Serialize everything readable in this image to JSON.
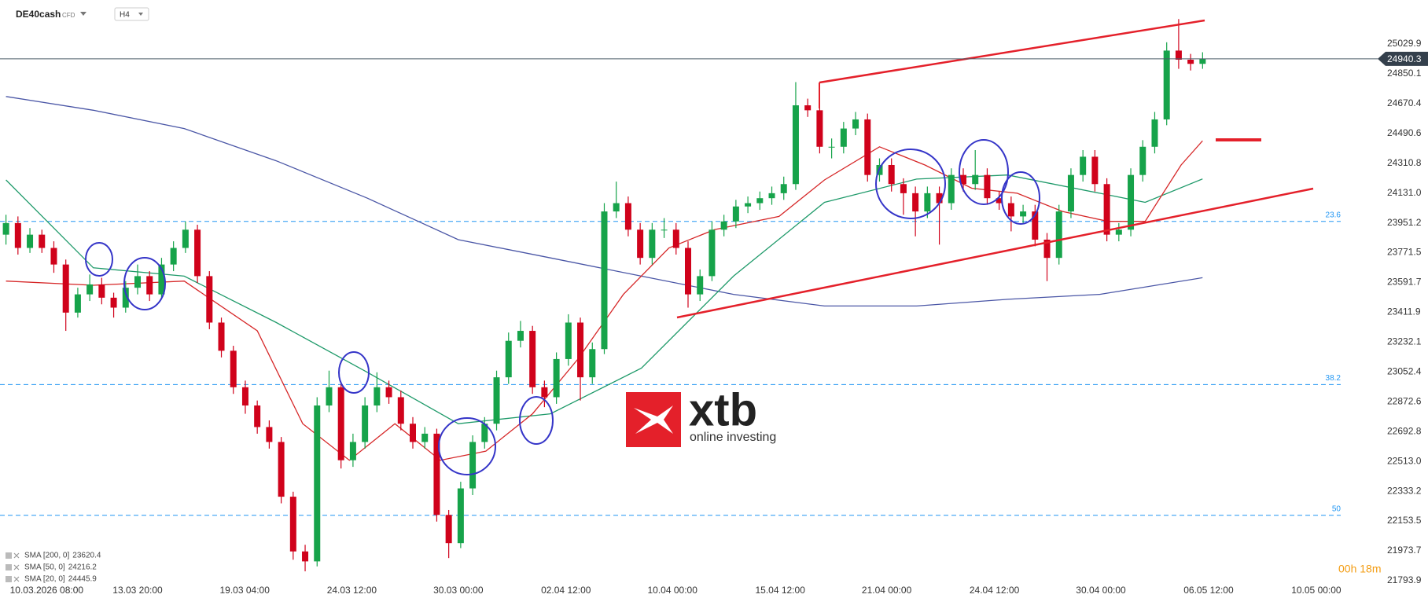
{
  "chart_data": {
    "type": "candlestick",
    "symbol": "DE40cash",
    "instrument_type": "CFD",
    "timeframe": "H4",
    "up_color": "#16a34a",
    "down_color": "#d0021b",
    "ohlc": [
      [
        23880,
        24000,
        23820,
        23950
      ],
      [
        23950,
        23990,
        23760,
        23800
      ],
      [
        23800,
        23920,
        23770,
        23880
      ],
      [
        23880,
        23910,
        23770,
        23800
      ],
      [
        23800,
        23840,
        23650,
        23700
      ],
      [
        23700,
        23730,
        23300,
        23410
      ],
      [
        23410,
        23560,
        23380,
        23520
      ],
      [
        23520,
        23640,
        23480,
        23580
      ],
      [
        23580,
        23620,
        23460,
        23500
      ],
      [
        23500,
        23530,
        23380,
        23440
      ],
      [
        23440,
        23600,
        23410,
        23560
      ],
      [
        23560,
        23700,
        23520,
        23630
      ],
      [
        23630,
        23660,
        23480,
        23520
      ],
      [
        23520,
        23740,
        23490,
        23700
      ],
      [
        23700,
        23840,
        23660,
        23800
      ],
      [
        23800,
        23960,
        23770,
        23910
      ],
      [
        23910,
        23940,
        23590,
        23630
      ],
      [
        23630,
        23660,
        23310,
        23350
      ],
      [
        23350,
        23380,
        23140,
        23180
      ],
      [
        23180,
        23210,
        22920,
        22960
      ],
      [
        22960,
        23000,
        22800,
        22850
      ],
      [
        22850,
        22880,
        22680,
        22720
      ],
      [
        22720,
        22760,
        22590,
        22630
      ],
      [
        22630,
        22660,
        22260,
        22300
      ],
      [
        22300,
        22330,
        21920,
        21970
      ],
      [
        21970,
        22010,
        21850,
        21910
      ],
      [
        21910,
        22900,
        21880,
        22850
      ],
      [
        22850,
        23060,
        22810,
        22960
      ],
      [
        22960,
        22990,
        22470,
        22520
      ],
      [
        22520,
        22680,
        22480,
        22630
      ],
      [
        22630,
        22900,
        22590,
        22850
      ],
      [
        22850,
        23050,
        22810,
        22960
      ],
      [
        22960,
        23000,
        22860,
        22900
      ],
      [
        22900,
        22940,
        22700,
        22740
      ],
      [
        22740,
        22780,
        22590,
        22630
      ],
      [
        22630,
        22720,
        22590,
        22680
      ],
      [
        22680,
        22710,
        22150,
        22190
      ],
      [
        22190,
        22220,
        21930,
        22020
      ],
      [
        22020,
        22390,
        21990,
        22350
      ],
      [
        22350,
        22670,
        22310,
        22630
      ],
      [
        22630,
        22780,
        22590,
        22740
      ],
      [
        22740,
        23060,
        22700,
        23020
      ],
      [
        23020,
        23290,
        22980,
        23240
      ],
      [
        23240,
        23360,
        23200,
        23300
      ],
      [
        23300,
        23330,
        22920,
        22960
      ],
      [
        22960,
        23000,
        22840,
        22900
      ],
      [
        22900,
        23170,
        22860,
        23130
      ],
      [
        23130,
        23400,
        23090,
        23350
      ],
      [
        23350,
        23380,
        22880,
        23020
      ],
      [
        23020,
        23230,
        22980,
        23190
      ],
      [
        23190,
        24070,
        23160,
        24020
      ],
      [
        24020,
        24200,
        23980,
        24070
      ],
      [
        24070,
        24110,
        23870,
        23910
      ],
      [
        23910,
        23950,
        23700,
        23740
      ],
      [
        23740,
        23950,
        23700,
        23910
      ],
      [
        23910,
        23980,
        23860,
        23910
      ],
      [
        23910,
        23950,
        23760,
        23800
      ],
      [
        23800,
        23840,
        23440,
        23520
      ],
      [
        23520,
        23670,
        23480,
        23630
      ],
      [
        23630,
        23960,
        23600,
        23910
      ],
      [
        23910,
        24000,
        23870,
        23960
      ],
      [
        23960,
        24090,
        23920,
        24050
      ],
      [
        24050,
        24110,
        24010,
        24070
      ],
      [
        24070,
        24140,
        24030,
        24100
      ],
      [
        24100,
        24170,
        24060,
        24130
      ],
      [
        24130,
        24230,
        24090,
        24185
      ],
      [
        24185,
        24800,
        24150,
        24660
      ],
      [
        24660,
        24700,
        24590,
        24630
      ],
      [
        24630,
        24660,
        24370,
        24410
      ],
      [
        24410,
        24460,
        24340,
        24410
      ],
      [
        24410,
        24560,
        24370,
        24520
      ],
      [
        24520,
        24620,
        24480,
        24575
      ],
      [
        24575,
        24610,
        24200,
        24240
      ],
      [
        24240,
        24340,
        24200,
        24300
      ],
      [
        24300,
        24340,
        24140,
        24185
      ],
      [
        24185,
        24220,
        24000,
        24130
      ],
      [
        24130,
        24170,
        23870,
        24020
      ],
      [
        24020,
        24170,
        23980,
        24130
      ],
      [
        24130,
        24170,
        23820,
        24070
      ],
      [
        24070,
        24280,
        24030,
        24240
      ],
      [
        24240,
        24280,
        24140,
        24185
      ],
      [
        24185,
        24390,
        24150,
        24240
      ],
      [
        24240,
        24280,
        24060,
        24100
      ],
      [
        24100,
        24140,
        24030,
        24070
      ],
      [
        24070,
        24110,
        23900,
        23990
      ],
      [
        23990,
        24060,
        23950,
        24020
      ],
      [
        24020,
        24060,
        23810,
        23850
      ],
      [
        23850,
        23890,
        23600,
        23740
      ],
      [
        23740,
        24060,
        23700,
        24020
      ],
      [
        24020,
        24280,
        23980,
        24240
      ],
      [
        24240,
        24390,
        24200,
        24350
      ],
      [
        24350,
        24390,
        24140,
        24185
      ],
      [
        24185,
        24220,
        23840,
        23880
      ],
      [
        23880,
        23950,
        23840,
        23910
      ],
      [
        23910,
        24280,
        23870,
        24240
      ],
      [
        24240,
        24450,
        24200,
        24410
      ],
      [
        24410,
        24620,
        24370,
        24575
      ],
      [
        24575,
        25040,
        24540,
        24990
      ],
      [
        24990,
        25180,
        24880,
        24935
      ],
      [
        24935,
        24970,
        24870,
        24910
      ],
      [
        24910,
        24980,
        24880,
        24940.3
      ]
    ],
    "series": [
      {
        "name": "SMA [200, 0]",
        "color": "#4a56a6",
        "x": [
          0,
          7.3,
          14.9,
          22.6,
          30.2,
          37.8,
          45.5,
          53.1,
          60.8,
          68.4,
          76.1,
          83.7,
          91.4,
          100
        ],
        "values": [
          24713,
          24630,
          24520,
          24325,
          24100,
          23850,
          23740,
          23630,
          23520,
          23450,
          23450,
          23490,
          23520,
          23620.4
        ]
      },
      {
        "name": "SMA [50, 0]",
        "color": "#1f9a6a",
        "x": [
          0,
          7.3,
          14.9,
          22.6,
          30.2,
          37.8,
          45.5,
          53.1,
          60.8,
          68.4,
          76.1,
          83.7,
          91.4,
          95.2,
          100
        ],
        "values": [
          24210,
          23680,
          23630,
          23350,
          23050,
          22740,
          22800,
          23075,
          23630,
          24075,
          24215,
          24240,
          24130,
          24075,
          24216.2
        ]
      },
      {
        "name": "SMA [20, 0]",
        "color": "#d62728",
        "x": [
          0,
          7.3,
          14.9,
          21,
          24.8,
          28.7,
          32.5,
          36.3,
          40.1,
          44,
          47.8,
          51.6,
          55.4,
          59.2,
          64.6,
          68.4,
          73,
          76.8,
          80.7,
          84.5,
          88.3,
          92.1,
          95.2,
          98.2,
          100
        ],
        "values": [
          23600,
          23575,
          23600,
          23300,
          22740,
          22520,
          22740,
          22520,
          22575,
          22800,
          23130,
          23520,
          23800,
          23910,
          23990,
          24210,
          24410,
          24300,
          24160,
          24130,
          24020,
          23960,
          23960,
          24300,
          24445.9
        ]
      }
    ],
    "xlim": [
      -0.5,
      114.5
    ],
    "ylim": [
      21765,
      25295
    ],
    "xticks": [
      {
        "value": 3.4,
        "label": "10.03.2026 08:00"
      },
      {
        "value": 11.0,
        "label": "13.03 20:00"
      },
      {
        "value": 19.95,
        "label": "19.03 04:00"
      },
      {
        "value": 28.9,
        "label": "24.03 12:00"
      },
      {
        "value": 37.8,
        "label": "30.03 00:00"
      },
      {
        "value": 46.8,
        "label": "02.04 12:00"
      },
      {
        "value": 55.7,
        "label": "10.04 00:00"
      },
      {
        "value": 64.7,
        "label": "15.04 12:00"
      },
      {
        "value": 73.6,
        "label": "21.04 00:00"
      },
      {
        "value": 82.6,
        "label": "24.04 12:00"
      },
      {
        "value": 91.5,
        "label": "30.04 00:00"
      },
      {
        "value": 100.5,
        "label": "06.05 12:00"
      },
      {
        "value": 109.5,
        "label": "10.05 00:00"
      }
    ],
    "yticks": [
      25029.9,
      24850.1,
      24670.4,
      24490.6,
      24310.8,
      {
        "value": 24131.0,
        "label": "24131.0"
      },
      23951.2,
      23771.5,
      23591.7,
      23411.9,
      23232.1,
      23052.4,
      22872.6,
      22692.8,
      {
        "value": 22513.0,
        "label": "22513.0"
      },
      22333.2,
      22153.5,
      21973.7,
      21793.9
    ],
    "current_price": 24940.3,
    "countdown": "00h 18m",
    "fib_levels": [
      {
        "level": 23.6,
        "value": 23960
      },
      {
        "level": 38.2,
        "value": 22976
      },
      {
        "level": 50.0,
        "value": 22188
      }
    ],
    "watermark": {
      "brand": "xtb",
      "tagline": "online investing"
    }
  }
}
